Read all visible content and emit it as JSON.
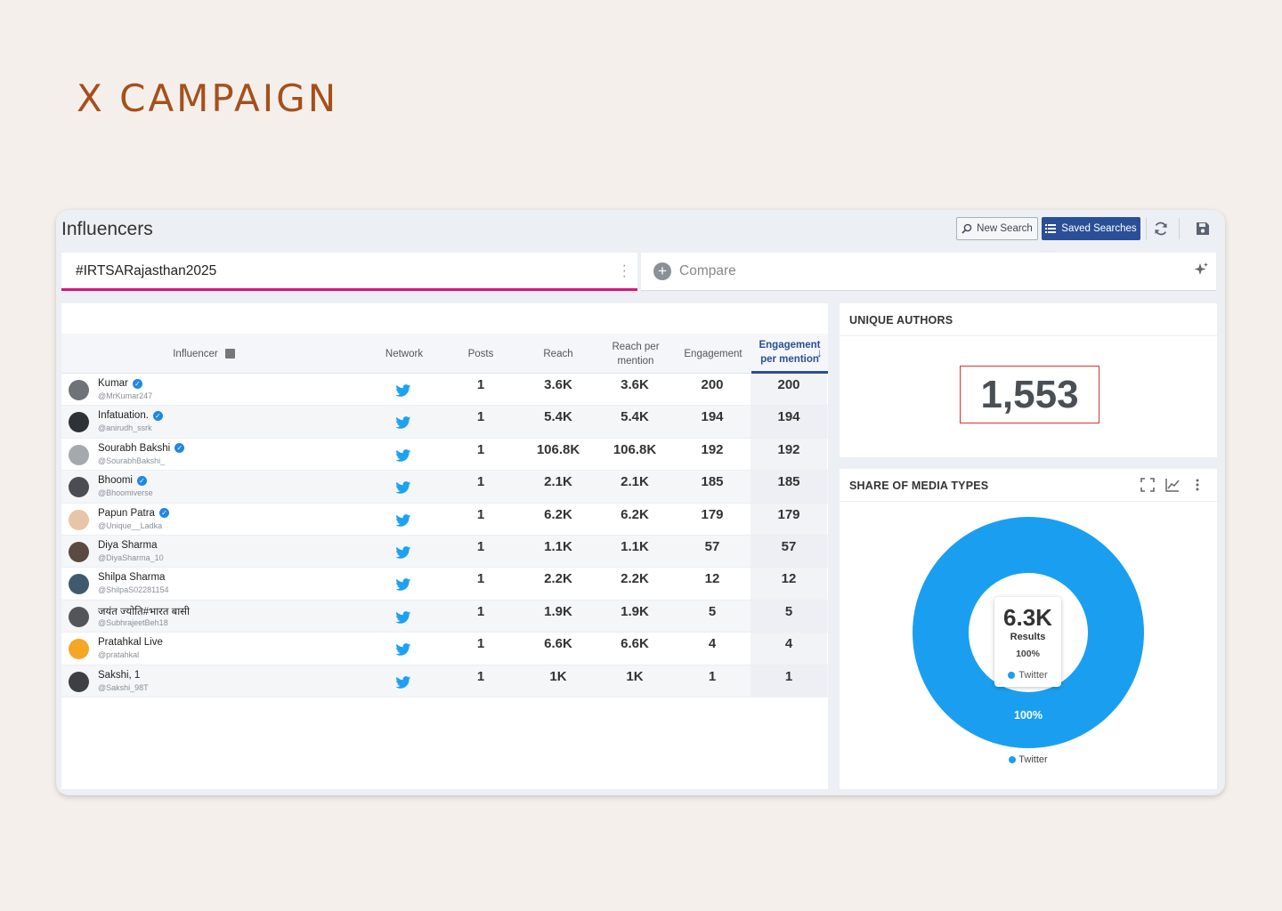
{
  "page_heading": "X CAMPAIGN",
  "app": {
    "title": "Influencers",
    "new_search_label": "New Search",
    "saved_searches_label": "Saved Searches",
    "query": "#IRTSARajasthan2025",
    "compare_placeholder": "Compare",
    "accent_color": "#d6177a",
    "brand_color": "#2b4f96"
  },
  "table": {
    "columns": {
      "influencer": "Influencer",
      "network": "Network",
      "posts": "Posts",
      "reach": "Reach",
      "reach_per_mention": "Reach per mention",
      "engagement": "Engagement",
      "engagement_per_mention": "Engagement per mention"
    },
    "sorted_by": "engagement_per_mention",
    "rows": [
      {
        "name": "Kumar",
        "handle": "@MrKumar247",
        "verified": true,
        "network": "twitter-icon",
        "posts": "1",
        "reach": "3.6K",
        "reach_per_mention": "3.6K",
        "engagement": "200",
        "engagement_per_mention": "200",
        "avatar_color": "#6f7379"
      },
      {
        "name": "Infatuation.",
        "handle": "@anirudh_ssrk",
        "verified": true,
        "network": "twitter-icon",
        "posts": "1",
        "reach": "5.4K",
        "reach_per_mention": "5.4K",
        "engagement": "194",
        "engagement_per_mention": "194",
        "avatar_color": "#2d3238"
      },
      {
        "name": "Sourabh Bakshi",
        "handle": "@SourabhBakshi_",
        "verified": true,
        "network": "twitter-icon",
        "posts": "1",
        "reach": "106.8K",
        "reach_per_mention": "106.8K",
        "engagement": "192",
        "engagement_per_mention": "192",
        "avatar_color": "#a4a9ae"
      },
      {
        "name": "Bhoomi",
        "handle": "@Bhoomiverse",
        "verified": true,
        "network": "twitter-icon",
        "posts": "1",
        "reach": "2.1K",
        "reach_per_mention": "2.1K",
        "engagement": "185",
        "engagement_per_mention": "185",
        "avatar_color": "#4a4e54"
      },
      {
        "name": "Papun Patra",
        "handle": "@Unique__Ladka",
        "verified": true,
        "network": "twitter-icon",
        "posts": "1",
        "reach": "6.2K",
        "reach_per_mention": "6.2K",
        "engagement": "179",
        "engagement_per_mention": "179",
        "avatar_color": "#e9c4a6"
      },
      {
        "name": "Diya Sharma",
        "handle": "@DiyaSharma_10",
        "verified": false,
        "network": "twitter-icon",
        "posts": "1",
        "reach": "1.1K",
        "reach_per_mention": "1.1K",
        "engagement": "57",
        "engagement_per_mention": "57",
        "avatar_color": "#5b4a42"
      },
      {
        "name": "Shilpa Sharma",
        "handle": "@ShilpaS02281154",
        "verified": false,
        "network": "twitter-icon",
        "posts": "1",
        "reach": "2.2K",
        "reach_per_mention": "2.2K",
        "engagement": "12",
        "engagement_per_mention": "12",
        "avatar_color": "#3f5a6e"
      },
      {
        "name": "जयंत ज्योति#भारत बासी",
        "handle": "@SubhrajeetBeh18",
        "verified": false,
        "network": "twitter-icon",
        "posts": "1",
        "reach": "1.9K",
        "reach_per_mention": "1.9K",
        "engagement": "5",
        "engagement_per_mention": "5",
        "avatar_color": "#52565b"
      },
      {
        "name": "Pratahkal Live",
        "handle": "@pratahkal",
        "verified": false,
        "network": "twitter-icon",
        "posts": "1",
        "reach": "6.6K",
        "reach_per_mention": "6.6K",
        "engagement": "4",
        "engagement_per_mention": "4",
        "avatar_color": "#f5a623"
      },
      {
        "name": "Sakshi, 1",
        "handle": "@Sakshi_98T",
        "verified": false,
        "network": "twitter-icon",
        "posts": "1",
        "reach": "1K",
        "reach_per_mention": "1K",
        "engagement": "1",
        "engagement_per_mention": "1",
        "avatar_color": "#3c4044"
      }
    ]
  },
  "unique_authors": {
    "title": "UNIQUE AUTHORS",
    "value": "1,553"
  },
  "media_types": {
    "title": "SHARE OF MEDIA TYPES",
    "tooltip_value": "6.3K",
    "tooltip_label": "Results",
    "tooltip_pct": "100%",
    "tooltip_series": "Twitter",
    "slice_label": "100%",
    "legend_label": "Twitter"
  },
  "chart_data": {
    "type": "pie",
    "title": "SHARE OF MEDIA TYPES",
    "series": [
      {
        "name": "Twitter",
        "values": [
          100
        ],
        "color": "#1a9ff0"
      }
    ],
    "categories": [
      "Twitter"
    ],
    "total": "6.3K"
  }
}
